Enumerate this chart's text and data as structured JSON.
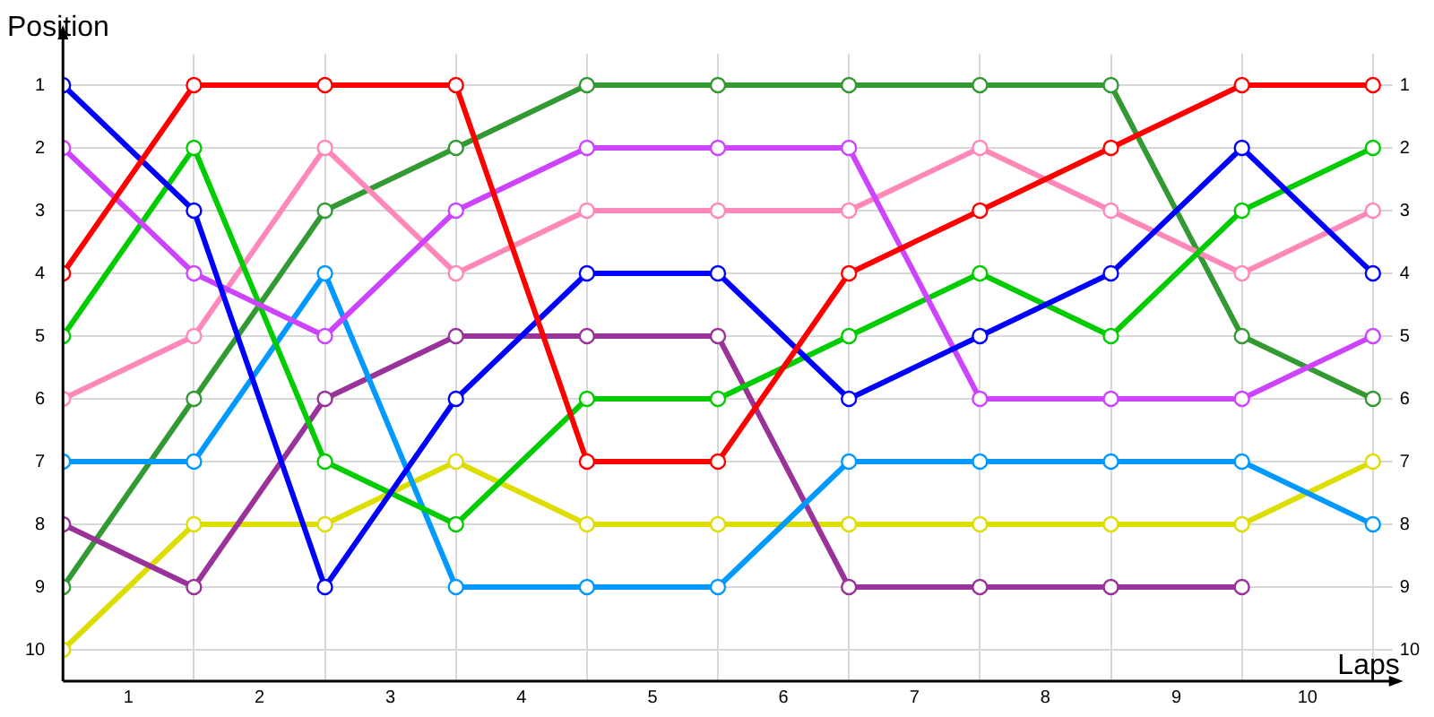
{
  "chart_data": {
    "type": "line",
    "xlabel": "Laps",
    "ylabel": "Position",
    "x": [
      0,
      1,
      2,
      3,
      4,
      5,
      6,
      7,
      8,
      9,
      10
    ],
    "xlim": [
      0,
      10.15
    ],
    "xticks": [
      {
        "value": 0,
        "label": null
      },
      {
        "value": 0.5,
        "label": "1"
      },
      {
        "value": 1,
        "label": null
      },
      {
        "value": 1.5,
        "label": "2"
      },
      {
        "value": 2,
        "label": null
      },
      {
        "value": 2.5,
        "label": "3"
      },
      {
        "value": 3,
        "label": null
      },
      {
        "value": 3.5,
        "label": "4"
      },
      {
        "value": 4,
        "label": null
      },
      {
        "value": 4.5,
        "label": "5"
      },
      {
        "value": 5,
        "label": null
      },
      {
        "value": 5.5,
        "label": "6"
      },
      {
        "value": 6,
        "label": null
      },
      {
        "value": 6.5,
        "label": "7"
      },
      {
        "value": 7,
        "label": null
      },
      {
        "value": 7.5,
        "label": "8"
      },
      {
        "value": 8,
        "label": null
      },
      {
        "value": 8.5,
        "label": "9"
      },
      {
        "value": 9,
        "label": null
      },
      {
        "value": 9.5,
        "label": "10"
      },
      {
        "value": 10,
        "label": null
      }
    ],
    "ylim": [
      10.5,
      0.5
    ],
    "yticks": [
      1,
      2,
      3,
      4,
      5,
      6,
      7,
      8,
      9,
      10
    ],
    "y2lim": [
      10.5,
      0.5
    ],
    "y2ticks": [
      1,
      2,
      3,
      4,
      5,
      6,
      7,
      8,
      9,
      10
    ],
    "grid": true,
    "legend": false,
    "marker": "circle",
    "line_style": "solid",
    "series": [
      {
        "color": "#ff0000",
        "values": [
          4,
          1,
          1,
          1,
          7,
          7,
          4,
          3,
          2,
          1,
          1
        ]
      },
      {
        "color": "#0000ff",
        "values": [
          1,
          3,
          9,
          6,
          4,
          4,
          6,
          5,
          4,
          2,
          4
        ]
      },
      {
        "color": "#cc44ff",
        "values": [
          2,
          4,
          5,
          3,
          2,
          2,
          2,
          6,
          6,
          6,
          5
        ]
      },
      {
        "color": "#00cc00",
        "values": [
          5,
          2,
          7,
          8,
          6,
          6,
          5,
          4,
          5,
          3,
          2
        ]
      },
      {
        "color": "#ff88bb",
        "values": [
          6,
          5,
          2,
          4,
          3,
          3,
          3,
          2,
          3,
          4,
          3
        ]
      },
      {
        "color": "#0099ff",
        "values": [
          7,
          7,
          4,
          9,
          9,
          9,
          7,
          7,
          7,
          7,
          8
        ]
      },
      {
        "color": "#993399",
        "values": [
          8,
          9,
          6,
          5,
          5,
          5,
          9,
          9,
          9,
          9,
          null
        ]
      },
      {
        "color": "#339933",
        "values": [
          9,
          6,
          3,
          2,
          1,
          1,
          1,
          1,
          1,
          5,
          6
        ]
      },
      {
        "color": "#dddd00",
        "values": [
          10,
          8,
          8,
          7,
          8,
          8,
          8,
          8,
          8,
          8,
          7
        ]
      }
    ]
  }
}
